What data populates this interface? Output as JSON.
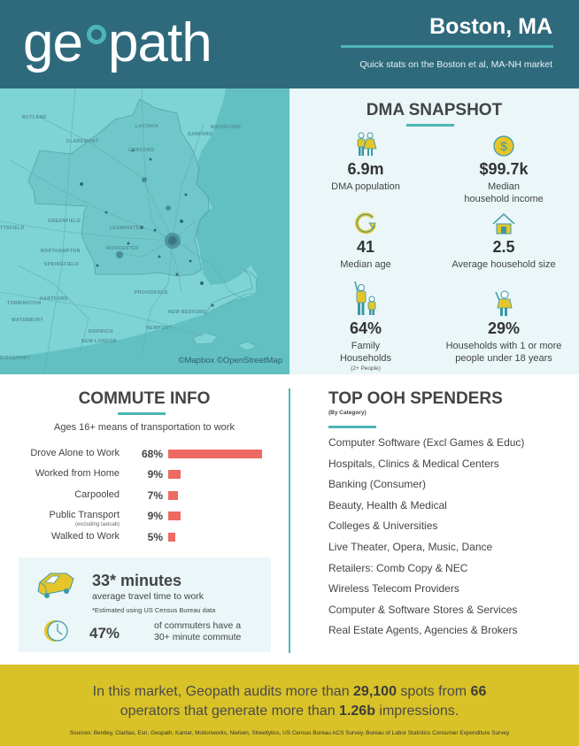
{
  "header": {
    "logo_text_left": "ge",
    "logo_text_right": "path",
    "logo_name": "geopath",
    "city_title": "Boston, MA",
    "subtitle": "Quick stats on the Boston et al, MA-NH market",
    "colors": {
      "background": "#2f6a7c",
      "accent": "#4db6b4"
    }
  },
  "map": {
    "labels": [
      "RUTLAND",
      "CLAREMONT",
      "LACONIA",
      "CONCORD",
      "SANFORD",
      "BIDDEFORD",
      "TTSFIELD",
      "GREENFIELD",
      "LEOMINSTER",
      "NORTHAMPTON",
      "SPRINGFIELD",
      "WORCESTER",
      "PROVIDENCE",
      "HARTFORD",
      "TORRINGTON",
      "WATERBURY",
      "NEW BEDFORD",
      "NEWPORT",
      "NORWICH",
      "NEW LONDON",
      "RIDGEPORT"
    ],
    "credit": "©Mapbox ©OpenStreetMap"
  },
  "snapshot": {
    "title": "DMA SNAPSHOT",
    "stats": [
      {
        "icon": "couple-icon",
        "value": "6.9m",
        "label": "DMA population"
      },
      {
        "icon": "dollar-coin-icon",
        "value": "$99.7k",
        "label_line1": "Median",
        "label_line2": "household income"
      },
      {
        "icon": "refresh-cycle-icon",
        "value": "41",
        "label": "Median age"
      },
      {
        "icon": "house-icon",
        "value": "2.5",
        "label": "Average household size"
      },
      {
        "icon": "parent-child-icon",
        "value": "64%",
        "label_line1": "Family",
        "label_line2": "Households",
        "note": "(2+ People)"
      },
      {
        "icon": "child-icon",
        "value": "29%",
        "label_line1": "Households with 1 or more",
        "label_line2": "people under 18 years"
      }
    ]
  },
  "commute": {
    "title": "COMMUTE INFO",
    "subtitle": "Ages 16+ means of transportation to work",
    "bars": [
      {
        "label": "Drove Alone to Work",
        "value": 68,
        "display": "68%"
      },
      {
        "label": "Worked from Home",
        "value": 9,
        "display": "9%"
      },
      {
        "label": "Carpooled",
        "value": 7,
        "display": "7%"
      },
      {
        "label": "Public Transport",
        "note": "(excluding taxicab)",
        "value": 9,
        "display": "9%"
      },
      {
        "label": "Walked to Work",
        "value": 5,
        "display": "5%"
      }
    ],
    "bar_color": "#ec6a62",
    "travel": {
      "minutes": "33* minutes",
      "description": "average travel time to work",
      "note": "*Estimated using US Census Bureau data",
      "long_commute_pct": "47%",
      "long_commute_line1": "of commuters have a",
      "long_commute_line2": "30+ minute commute"
    }
  },
  "ooh": {
    "title": "TOP OOH SPENDERS",
    "subtitle": "(By Category)",
    "items": [
      "Computer Software (Excl Games & Educ)",
      "Hospitals, Clinics & Medical Centers",
      "Banking (Consumer)",
      "Beauty, Health & Medical",
      "Colleges & Universities",
      "Live Theater, Opera, Music, Dance",
      "Retailers: Comb Copy & NEC",
      "Wireless Telecom Providers",
      "Computer & Software Stores & Services",
      "Real Estate Agents, Agencies & Brokers"
    ]
  },
  "footer": {
    "part1": "In this market, Geopath audits more than ",
    "spots": "29,100",
    "part2": " spots from ",
    "operators": "66",
    "part3": "operators that generate more than ",
    "impressions": "1.26b",
    "part4": " impressions.",
    "sources": "Sources: Bentley, Claritas, Esri, Geopath, Kantar, Motionworks, Nielsen, Streetlytics, US Census Bureau ACS Survey, Bureau of Labor Statistics Consumer Expenditure Survey",
    "background": "#d9c227"
  }
}
